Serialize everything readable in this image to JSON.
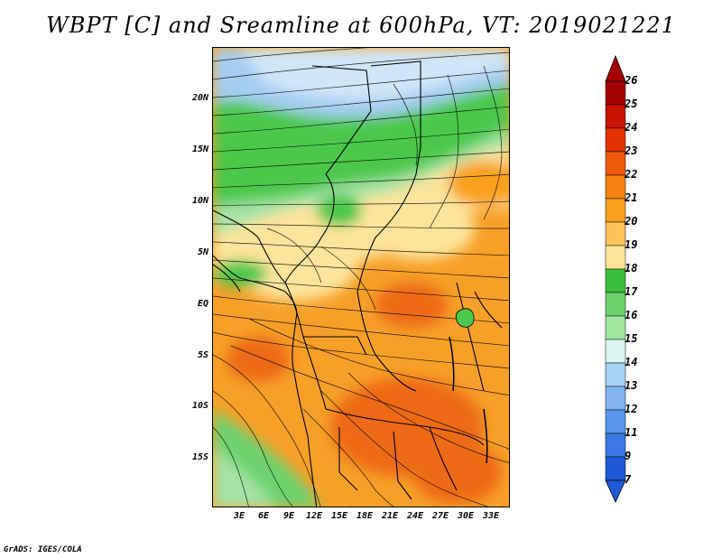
{
  "title": "WBPT [C] and Sreamline at 600hPa, VT: 2019021221",
  "credit": "GrADS: IGES/COLA",
  "map": {
    "lat_labels": [
      "20N",
      "15N",
      "10N",
      "5N",
      "EQ",
      "5S",
      "10S",
      "15S"
    ],
    "lon_labels": [
      "3E",
      "6E",
      "9E",
      "12E",
      "15E",
      "18E",
      "21E",
      "24E",
      "27E",
      "30E",
      "33E"
    ]
  },
  "colorbar": {
    "labels": [
      "26",
      "25",
      "24",
      "23",
      "22",
      "21",
      "20",
      "19",
      "18",
      "17",
      "16",
      "15",
      "14",
      "13",
      "12",
      "11",
      "9",
      "7"
    ],
    "colors": [
      "#a50000",
      "#c81400",
      "#e43200",
      "#f05a0a",
      "#f7820f",
      "#faa01e",
      "#fcc35a",
      "#fde49b",
      "#3cbe3c",
      "#6ed26e",
      "#a0e6a0",
      "#dcf5f0",
      "#aad2f5",
      "#82b4f0",
      "#5a96eb",
      "#3c78e6",
      "#1e5ad7"
    ]
  },
  "colors": {
    "cool_blue": "#a6cdf2",
    "green": "#4cc84c",
    "light_green": "#b4ebb4",
    "yellow": "#fde49b",
    "orange": "#f7a028",
    "dark_orange": "#ee6a12"
  }
}
